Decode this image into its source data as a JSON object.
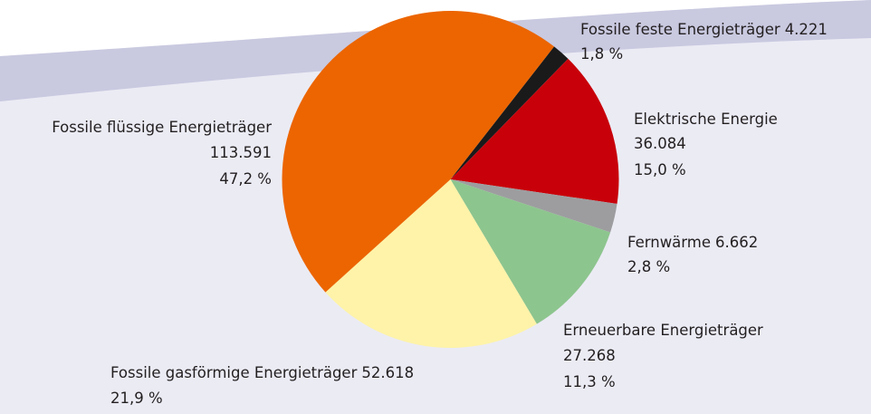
{
  "chart_data": {
    "type": "pie",
    "categories": [
      "Fossile feste Energieträger",
      "Elektrische Energie",
      "Fernwärme",
      "Erneuerbare Energieträger",
      "Fossile gasförmige Energieträger",
      "Fossile flüssige Energieträger"
    ],
    "values": [
      4221,
      36084,
      6662,
      27268,
      52618,
      113591
    ],
    "value_labels": [
      "4.221",
      "36.084",
      "6.662",
      "27.268",
      "52.618",
      "113.591"
    ],
    "percentages": [
      1.8,
      15.0,
      2.8,
      11.3,
      21.9,
      47.2
    ],
    "percentage_labels": [
      "1,8 %",
      "15,0 %",
      "2,8 %",
      "11,3 %",
      "21,9 %",
      "47,2 %"
    ],
    "colors": [
      "#1a1a1a",
      "#c8000a",
      "#9d9d9f",
      "#8dc58e",
      "#fef3a8",
      "#ec6500"
    ]
  }
}
